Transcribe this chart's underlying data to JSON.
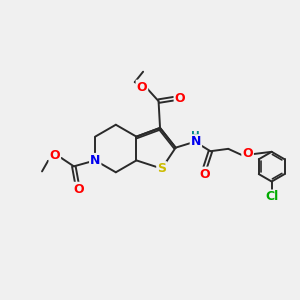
{
  "bg_color": "#f0f0f0",
  "bond_color": "#2a2a2a",
  "atom_colors": {
    "O": "#ff0000",
    "N": "#0000ee",
    "S": "#ccbb00",
    "Cl": "#00aa00",
    "H": "#008888"
  },
  "figsize": [
    3.0,
    3.0
  ],
  "dpi": 100,
  "lw": 1.4,
  "fs": 8.5
}
